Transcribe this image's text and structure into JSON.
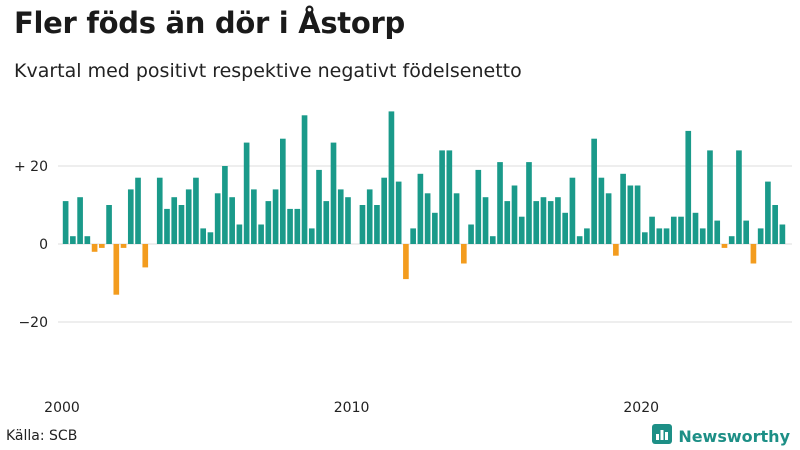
{
  "header": {
    "title": "Fler föds än dör i Åstorp",
    "subtitle": "Kvartal med positivt respektive negativt födelsenetto"
  },
  "footer": {
    "source": "Källa: SCB",
    "brand": "Newsworthy",
    "brand_icon": "bar-chart-logo-icon"
  },
  "colors": {
    "positive": "#1a9a8a",
    "negative": "#f39c1e",
    "grid": "#dddddd",
    "brand": "#1d8f86"
  },
  "chart_data": {
    "type": "bar",
    "x_start": "2000 Q1",
    "x_tick_labels": [
      "2000",
      "2010",
      "2020"
    ],
    "y_tick_labels": [
      "+ 20",
      "0",
      "−20"
    ],
    "y_ticks": [
      20,
      0,
      -20
    ],
    "ylim": [
      -35,
      35
    ],
    "grid": true,
    "series": [
      {
        "values": [
          11,
          2,
          12,
          2,
          -2,
          -1,
          10,
          -13,
          -1,
          14,
          17,
          -6,
          0,
          17,
          9,
          12,
          10,
          14,
          17,
          4,
          3,
          13,
          20,
          12,
          5,
          26,
          14,
          5,
          11,
          14,
          27,
          9,
          9,
          33,
          4,
          19,
          11,
          26,
          14,
          12,
          0,
          10,
          14,
          10,
          17,
          34,
          16,
          -9,
          4,
          18,
          13,
          8,
          24,
          24,
          13,
          -5,
          5,
          19,
          12,
          2,
          21,
          11,
          15,
          7,
          21,
          11,
          12,
          11,
          12,
          8,
          17,
          2,
          4,
          27,
          17,
          13,
          -3,
          18,
          15,
          15,
          3,
          7,
          4,
          4,
          7,
          7,
          29,
          8,
          4,
          24,
          6,
          -1,
          2,
          24,
          6,
          -5,
          4,
          16,
          10,
          5
        ]
      }
    ]
  }
}
